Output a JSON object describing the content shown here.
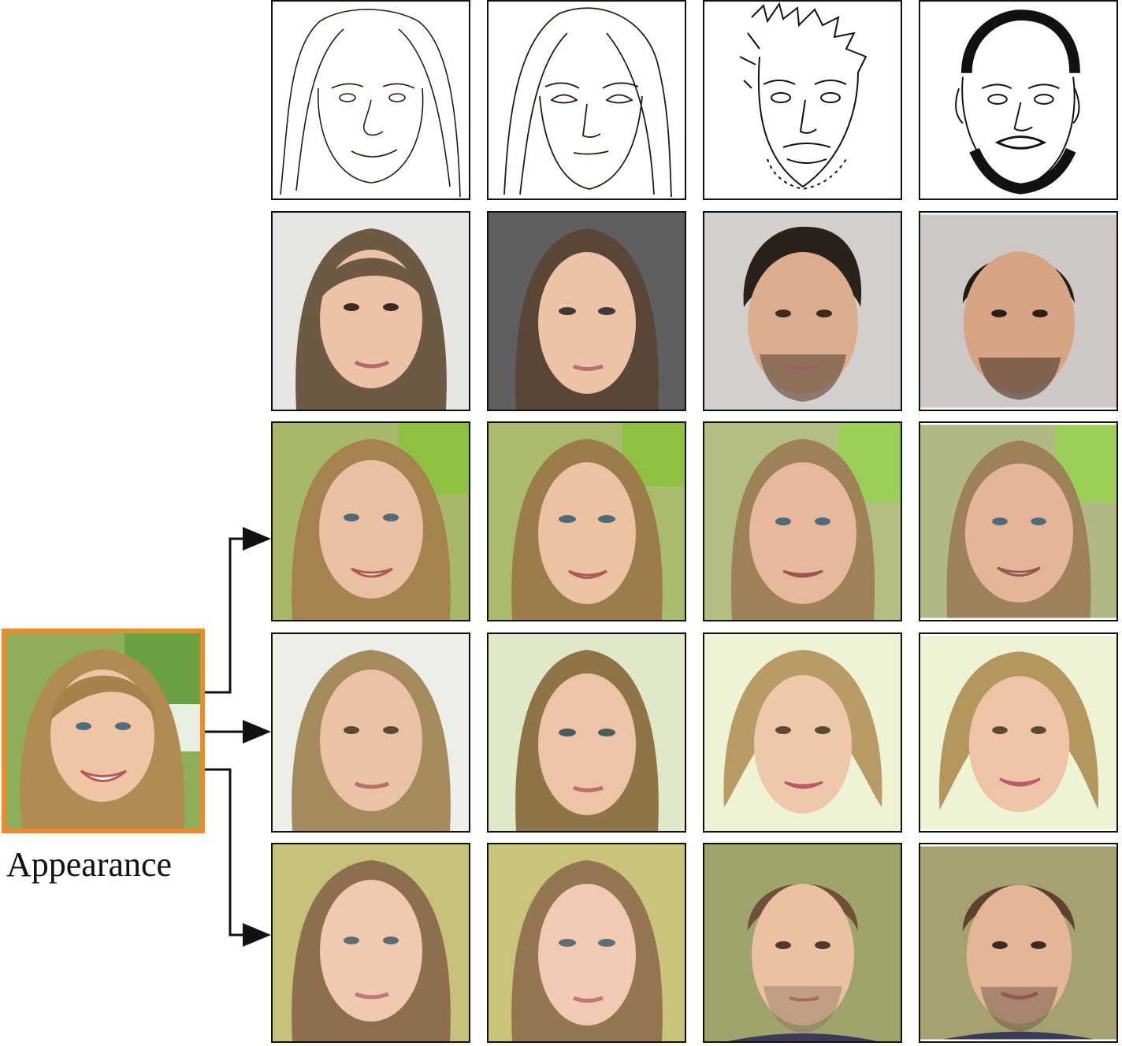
{
  "figure": {
    "appearance_label": "Appearance",
    "colors": {
      "appearance_border": "#ee8a2a",
      "frame": "#111111",
      "arrow": "#111111"
    }
  }
}
